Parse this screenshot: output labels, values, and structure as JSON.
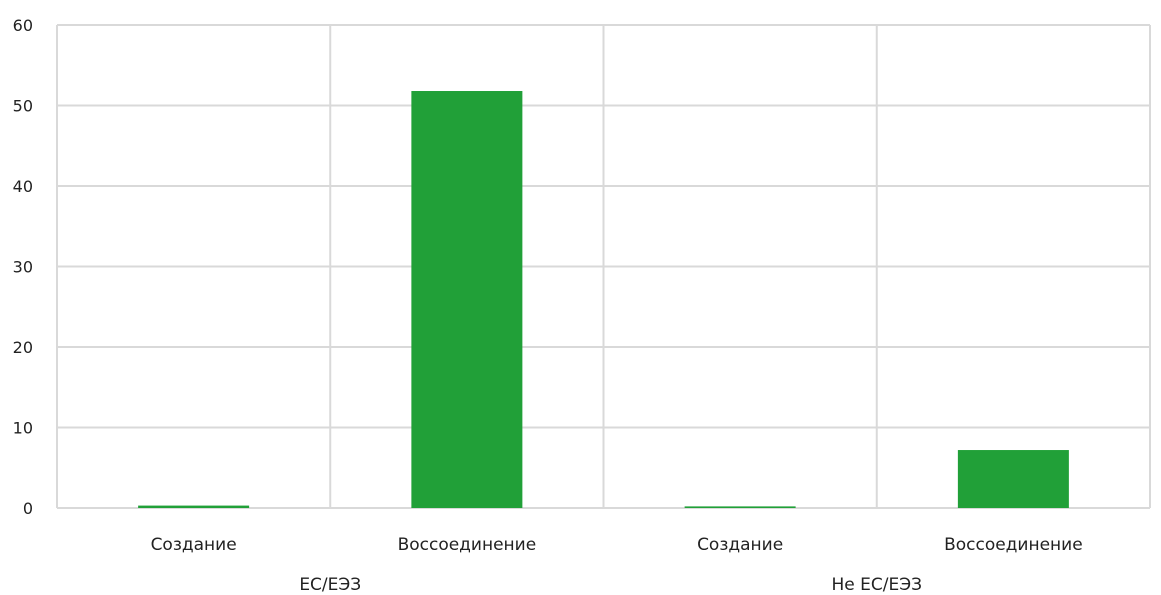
{
  "chart_data": {
    "type": "bar",
    "title": "",
    "xlabel": "",
    "ylabel": "",
    "ylim": [
      0,
      60
    ],
    "yticks": [
      0,
      10,
      20,
      30,
      40,
      50,
      60
    ],
    "grid": true,
    "bar_color": "#21a038",
    "grid_color": "#d9d9d9",
    "groups": [
      {
        "label": "ЕС/ЕЭЗ",
        "categories": [
          "Создание",
          "Воссоединение"
        ],
        "values": [
          0.3,
          51.8
        ]
      },
      {
        "label": "Не ЕС/ЕЭЗ",
        "categories": [
          "Создание",
          "Воссоединение"
        ],
        "values": [
          0.2,
          7.2
        ]
      }
    ]
  }
}
